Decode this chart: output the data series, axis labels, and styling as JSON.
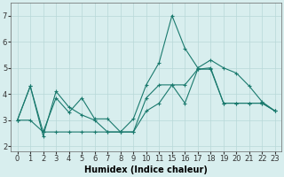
{
  "xlabel": "Humidex (Indice chaleur)",
  "background_color": "#d8eeee",
  "grid_color": "#b8d8d8",
  "line_color": "#1a7a6e",
  "ylim": [
    1.8,
    7.5
  ],
  "yticks": [
    2,
    3,
    4,
    5,
    6,
    7
  ],
  "xtick_labels": [
    "0",
    "1",
    "2",
    "3",
    "4",
    "5",
    "6",
    "7",
    "8",
    "9",
    "10",
    "11",
    "15",
    "16",
    "17",
    "18",
    "19",
    "20",
    "21",
    "22",
    "23"
  ],
  "series": [
    {
      "x": [
        0,
        1,
        2,
        3,
        4,
        5,
        6,
        7,
        8,
        9,
        10,
        11,
        12,
        13,
        14,
        15,
        16,
        17,
        18,
        19,
        20
      ],
      "y": [
        3.0,
        4.3,
        2.4,
        4.1,
        3.5,
        3.2,
        3.0,
        2.55,
        2.55,
        3.05,
        4.35,
        5.2,
        7.0,
        5.75,
        5.0,
        5.3,
        5.0,
        4.8,
        4.3,
        3.7,
        3.35
      ]
    },
    {
      "x": [
        0,
        1,
        2,
        3,
        4,
        5,
        6,
        7,
        8,
        9,
        10,
        11,
        12,
        13,
        14,
        15,
        16,
        17,
        18,
        19,
        20
      ],
      "y": [
        3.0,
        4.3,
        2.55,
        3.85,
        3.3,
        3.85,
        3.05,
        3.05,
        2.55,
        2.55,
        3.85,
        4.35,
        4.35,
        3.65,
        4.95,
        4.95,
        3.65,
        3.65,
        3.65,
        3.65,
        3.35
      ]
    },
    {
      "x": [
        0,
        1,
        2,
        3,
        4,
        5,
        6,
        7,
        8,
        9,
        10,
        11,
        12,
        13,
        14,
        15,
        16,
        17,
        18,
        19,
        20
      ],
      "y": [
        3.0,
        3.0,
        2.55,
        2.55,
        2.55,
        2.55,
        2.55,
        2.55,
        2.55,
        2.55,
        3.35,
        3.65,
        4.35,
        4.35,
        4.95,
        5.0,
        3.65,
        3.65,
        3.65,
        3.65,
        3.35
      ]
    }
  ]
}
